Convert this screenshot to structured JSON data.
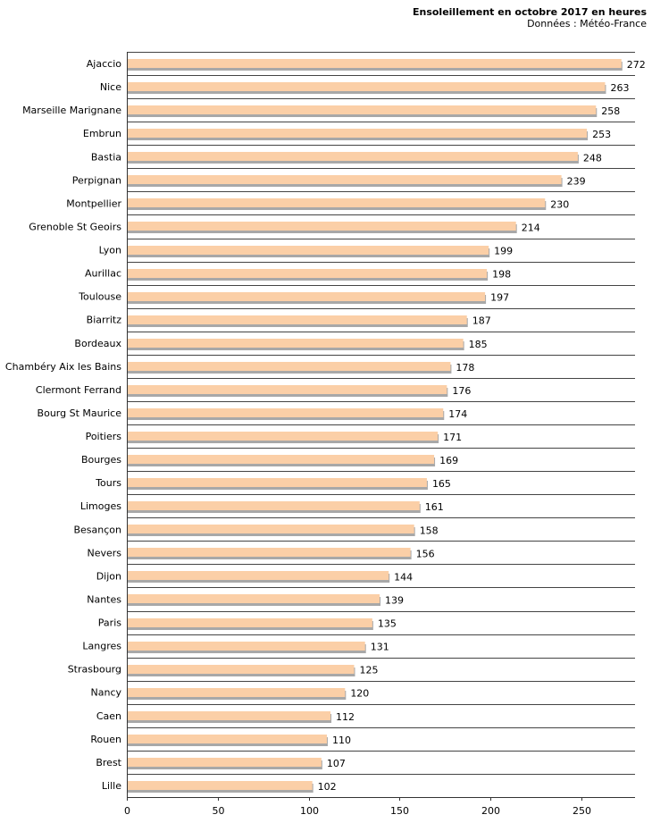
{
  "chart_data": {
    "type": "bar",
    "orientation": "horizontal",
    "title": "Ensoleillement en octobre 2017 en heures",
    "subtitle": "Données : Météo-France",
    "xlabel": "",
    "ylabel": "",
    "xlim": [
      0,
      280
    ],
    "ticks": [
      0,
      50,
      100,
      150,
      200,
      250
    ],
    "grid": true,
    "bar_color": "#fbcfa7",
    "categories": [
      "Ajaccio",
      "Nice",
      "Marseille Marignane",
      "Embrun",
      "Bastia",
      "Perpignan",
      "Montpellier",
      "Grenoble St Geoirs",
      "Lyon",
      "Aurillac",
      "Toulouse",
      "Biarritz",
      "Bordeaux",
      "Chambéry Aix les Bains",
      "Clermont Ferrand",
      "Bourg St Maurice",
      "Poitiers",
      "Bourges",
      "Tours",
      "Limoges",
      "Besançon",
      "Nevers",
      "Dijon",
      "Nantes",
      "Paris",
      "Langres",
      "Strasbourg",
      "Nancy",
      "Caen",
      "Rouen",
      "Brest",
      "Lille"
    ],
    "values": [
      272,
      263,
      258,
      253,
      248,
      239,
      230,
      214,
      199,
      198,
      197,
      187,
      185,
      178,
      176,
      174,
      171,
      169,
      165,
      161,
      158,
      156,
      144,
      139,
      135,
      131,
      125,
      120,
      112,
      110,
      107,
      102
    ]
  }
}
